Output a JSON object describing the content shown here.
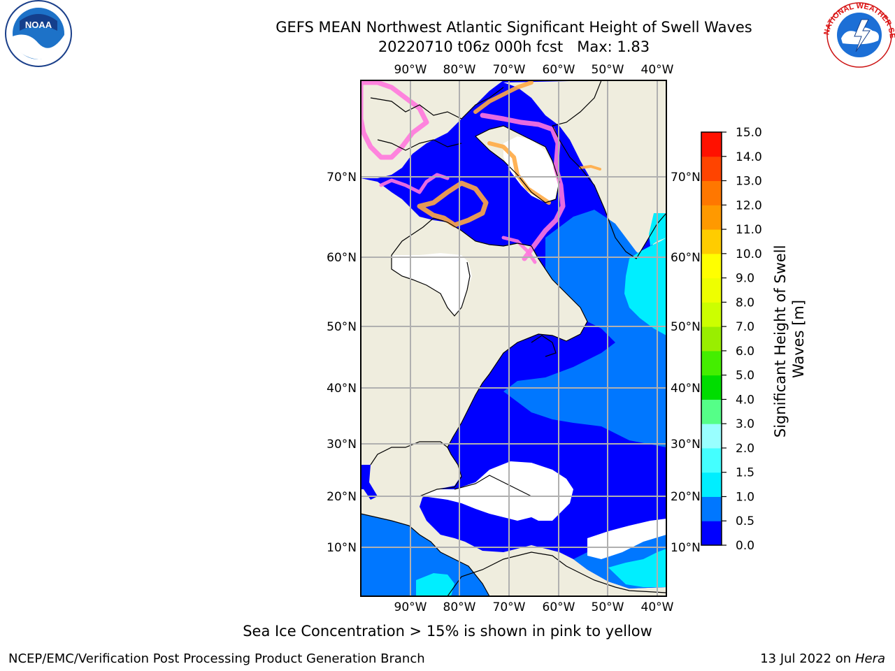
{
  "title": {
    "line1": "GEFS MEAN Northwest Atlantic Significant Height of Swell Waves",
    "line2": "20220710 t06z 000h fcst   Max: 1.83"
  },
  "map": {
    "lon_labels": [
      "90°W",
      "80°W",
      "70°W",
      "60°W",
      "50°W",
      "40°W"
    ],
    "lat_labels": [
      "70°N",
      "60°N",
      "50°N",
      "40°N",
      "30°N",
      "20°N",
      "10°N"
    ],
    "colors": {
      "land": "#efedde",
      "ocean_0": "#0000ff",
      "ocean_05": "#0077ff",
      "ocean_1": "#00eeff",
      "ocean_15": "#44ffee",
      "nodata": "#ffffff",
      "ice_pink": "#ff77dd",
      "ice_orange": "#ffaa44",
      "grid": "#b0b0b0"
    }
  },
  "colorbar": {
    "label_line1": "Significant Height of Swell",
    "label_line2": "Waves [m]",
    "ticks": [
      "0.0",
      "0.5",
      "1.0",
      "1.5",
      "2.0",
      "3.0",
      "4.0",
      "5.0",
      "6.0",
      "7.0",
      "8.0",
      "9.0",
      "10.0",
      "11.0",
      "12.0",
      "13.0",
      "14.0",
      "15.0"
    ],
    "colors": [
      "#0000ff",
      "#0077ff",
      "#00eeff",
      "#44ffff",
      "#99ffff",
      "#55ff88",
      "#00dd00",
      "#44ee00",
      "#99ee00",
      "#ccff00",
      "#eeff00",
      "#ffff00",
      "#ffcc00",
      "#ff9900",
      "#ff7700",
      "#ff4400",
      "#ff1100"
    ]
  },
  "note": "Sea Ice Concentration > 15% is shown in pink to yellow",
  "footer": {
    "left": "NCEP/EMC/Verification Post Processing Product Generation Branch",
    "right_prefix": "13 Jul 2022 on ",
    "right_host": "Hera"
  },
  "logos": {
    "noaa_text": "NOAA",
    "nws_text": "NATIONAL WEATHER SERVICE"
  }
}
